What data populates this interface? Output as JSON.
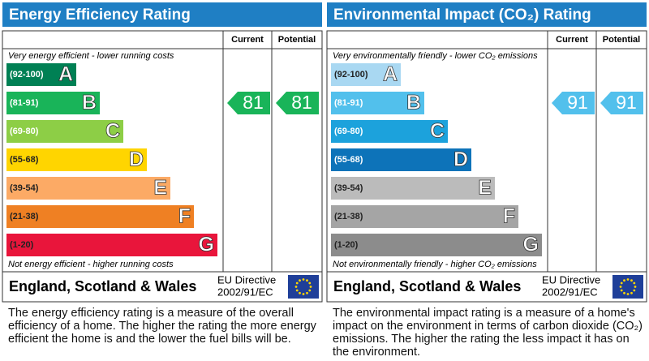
{
  "panels": [
    {
      "title": "Energy Efficiency Rating",
      "columns": [
        "Current",
        "Potential"
      ],
      "top_note": "Very energy efficient - lower running costs",
      "bands": [
        {
          "range": "(92-100)",
          "letter": "A",
          "color": "#008054"
        },
        {
          "range": "(81-91)",
          "letter": "B",
          "color": "#19b459"
        },
        {
          "range": "(69-80)",
          "letter": "C",
          "color": "#8dce46"
        },
        {
          "range": "(55-68)",
          "letter": "D",
          "color": "#ffd500"
        },
        {
          "range": "(39-54)",
          "letter": "E",
          "color": "#fcaa65"
        },
        {
          "range": "(21-38)",
          "letter": "F",
          "color": "#ef8023"
        },
        {
          "range": "(1-20)",
          "letter": "G",
          "color": "#e9153b"
        }
      ],
      "current": 81,
      "potential": 81,
      "bottom_note": "Not energy efficient - higher running costs",
      "region": "England, Scotland & Wales",
      "directive": "EU Directive",
      "directive_code": "2002/91/EC",
      "description": "The energy efficiency rating is a measure of the overall efficiency of a home. The higher the rating the more energy efficient the home is and the lower the fuel bills will be."
    },
    {
      "title": "Environmental Impact (CO₂) Rating",
      "columns": [
        "Current",
        "Potential"
      ],
      "top_note": "Very environmentally friendly - lower CO₂ emissions",
      "bands": [
        {
          "range": "(92-100)",
          "letter": "A",
          "color": "#a9d8f2"
        },
        {
          "range": "(81-91)",
          "letter": "B",
          "color": "#52c0ec"
        },
        {
          "range": "(69-80)",
          "letter": "C",
          "color": "#1ca2dc"
        },
        {
          "range": "(55-68)",
          "letter": "D",
          "color": "#0d73b9"
        },
        {
          "range": "(39-54)",
          "letter": "E",
          "color": "#bbbbbb"
        },
        {
          "range": "(21-38)",
          "letter": "F",
          "color": "#a5a5a5"
        },
        {
          "range": "(1-20)",
          "letter": "G",
          "color": "#8c8c8c"
        }
      ],
      "current": 91,
      "potential": 91,
      "bottom_note": "Not environmentally friendly - higher CO₂ emissions",
      "region": "England, Scotland & Wales",
      "directive": "EU Directive",
      "directive_code": "2002/91/EC",
      "description": "The environmental impact rating is a measure of a home's impact on the environment in terms of carbon dioxide (CO₂) emissions. The higher the rating the less impact it has on the environment."
    }
  ]
}
